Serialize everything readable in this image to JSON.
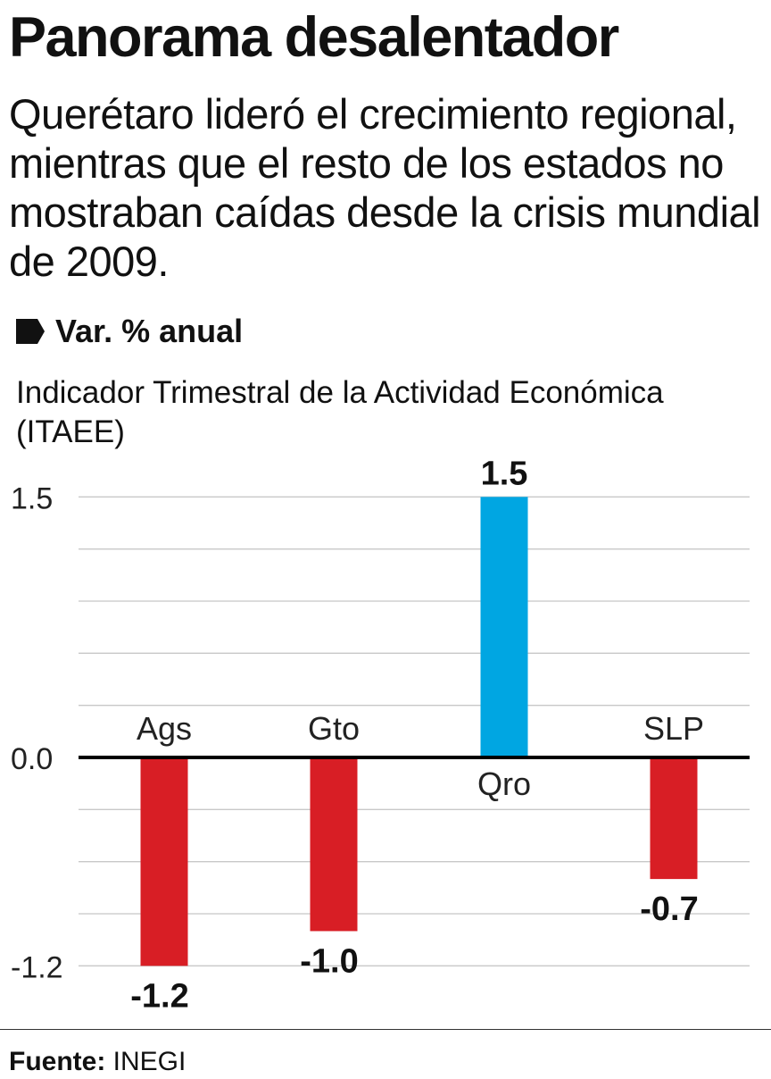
{
  "title": "Panorama desalentador",
  "subtitle": "Querétaro lideró el crecimiento regional, mientras que el resto de los estados no mostraban caídas desde la crisis mundial de 2009.",
  "unit_label": "Var. % anual",
  "unit_icon": "tag-icon",
  "source_label": "Fuente:",
  "source_value": "INEGI",
  "chart_data": {
    "type": "bar",
    "title": "Panorama desalentador",
    "ylabel": "Indicador Trimestral de la Actividad Económica (ITAEE)",
    "categories": [
      "Ags",
      "Gto",
      "Qro",
      "SLP"
    ],
    "values": [
      -1.2,
      -1.0,
      1.5,
      -0.7
    ],
    "value_labels": [
      "-1.2",
      "-1.0",
      "1.5",
      "-0.7"
    ],
    "yticks": [
      "1.5",
      "0.0",
      "-1.2"
    ],
    "ytick_values": [
      1.5,
      0.0,
      -1.2
    ],
    "ylim": [
      -1.2,
      1.5
    ],
    "grid": true,
    "grid_step": 0.3,
    "colors": {
      "negative": "#d81e25",
      "positive": "#00a6e2"
    }
  }
}
